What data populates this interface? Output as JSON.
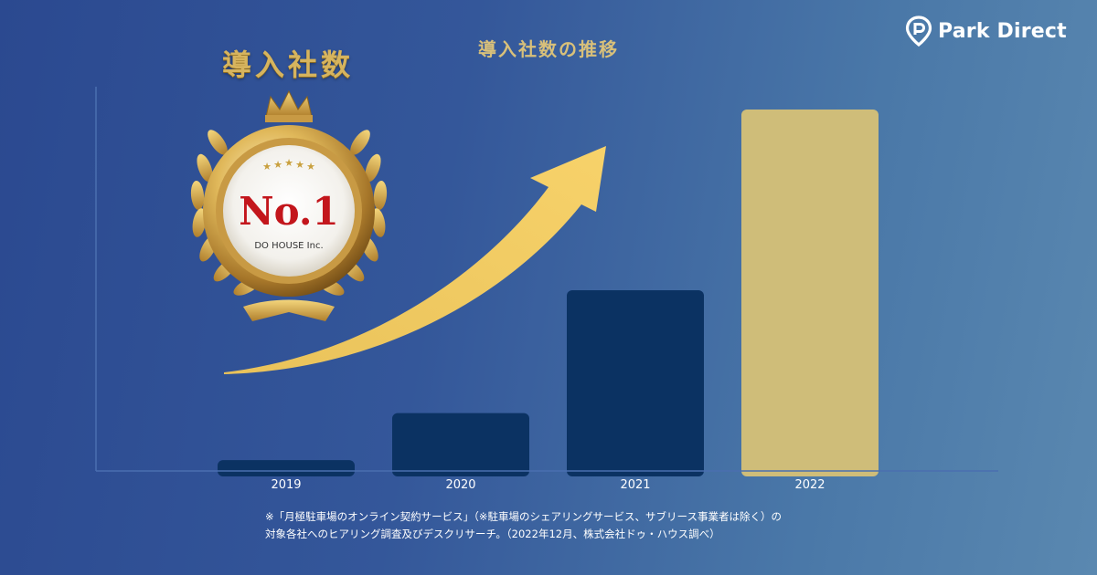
{
  "brand": {
    "name": "Park Direct",
    "icon": "location-pin-p-icon"
  },
  "badge": {
    "title": "導入社数",
    "rank": "No.1",
    "company": "DO HOUSE Inc.",
    "stars": 5,
    "icon": "crown-laurel-medal-icon"
  },
  "arrow": {
    "icon": "upward-trend-arrow-icon",
    "color": "#f2cc5c"
  },
  "colors": {
    "bar_default": "#0b3262",
    "bar_highlight": "#cfbd79",
    "axis": "#4a6fb0",
    "gold": "#d6b45e"
  },
  "chart_data": {
    "type": "bar",
    "title": "導入社数の推移",
    "categories": [
      "2019",
      "2020",
      "2021",
      "2022"
    ],
    "values": [
      3,
      16,
      50,
      100
    ],
    "highlight_index": 3,
    "xlabel": "",
    "ylabel": "",
    "ylim": [
      0,
      100
    ],
    "grid": false,
    "legend": "none"
  },
  "footnote": {
    "line1": "※「月極駐車場のオンライン契約サービス」（※駐車場のシェアリングサービス、サブリース事業者は除く）の",
    "line2": "対象各社へのヒアリング調査及びデスクリサーチ。（2022年12月、株式会社ドゥ・ハウス調べ）"
  }
}
